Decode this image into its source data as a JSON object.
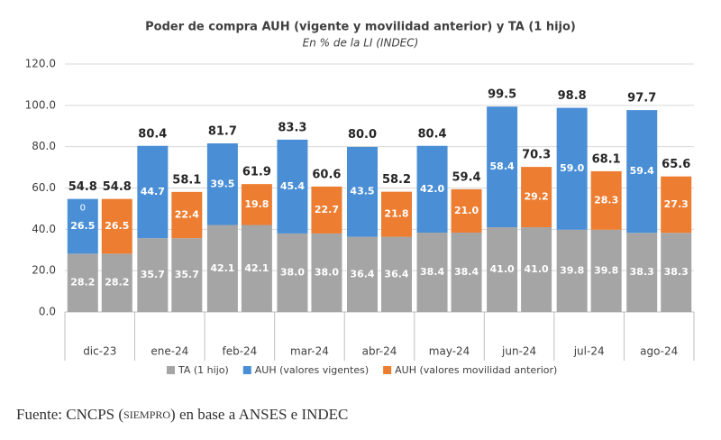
{
  "chart_data": {
    "type": "grouped-stacked-bar",
    "title": "Poder de compra AUH (vigente y movilidad anterior) y TA (1 hijo)",
    "subtitle": "En % de la LI (INDEC)",
    "categories": [
      "dic-23",
      "ene-24",
      "feb-24",
      "mar-24",
      "abr-24",
      "may-24",
      "jun-24",
      "jul-24",
      "ago-24"
    ],
    "series": [
      {
        "name": "TA (1 hijo)",
        "color": "#a5a5a5",
        "values": [
          [
            28.2,
            28.2
          ],
          [
            35.7,
            35.7
          ],
          [
            42.1,
            42.1
          ],
          [
            38.0,
            38.0
          ],
          [
            36.4,
            36.4
          ],
          [
            38.4,
            38.4
          ],
          [
            41.0,
            41.0
          ],
          [
            39.8,
            39.8
          ],
          [
            38.3,
            38.3
          ]
        ],
        "value_labels": [
          [
            "28.2",
            "28.2"
          ],
          [
            "35.7",
            "35.7"
          ],
          [
            "42.1",
            "42.1"
          ],
          [
            "38.0",
            "38.0"
          ],
          [
            "36.4",
            "36.4"
          ],
          [
            "38.4",
            "38.4"
          ],
          [
            "41.0",
            "41.0"
          ],
          [
            "39.8",
            "39.8"
          ],
          [
            "38.3",
            "38.3"
          ]
        ]
      },
      {
        "name": "AUH (valores vigentes)",
        "color": "#4a8fd6",
        "bar": 0,
        "values": [
          26.5,
          44.7,
          39.5,
          45.4,
          43.5,
          42.0,
          58.4,
          59.0,
          59.4
        ],
        "value_labels": [
          "26.5",
          "44.7",
          "39.5",
          "45.4",
          "43.5",
          "42.0",
          "58.4",
          "59.0",
          "59.4"
        ]
      },
      {
        "name": "AUH (valores movilidad anterior)",
        "color": "#ed7d31",
        "bar": 1,
        "values": [
          26.5,
          22.4,
          19.8,
          22.7,
          21.8,
          21.0,
          29.2,
          28.3,
          27.3
        ],
        "value_labels": [
          "26.5",
          "22.4",
          "19.8",
          "22.7",
          "21.8",
          "21.0",
          "29.2",
          "28.3",
          "27.3"
        ]
      }
    ],
    "totals": {
      "values": [
        [
          54.8,
          54.8
        ],
        [
          80.4,
          58.1
        ],
        [
          81.7,
          61.9
        ],
        [
          83.3,
          60.6
        ],
        [
          80.0,
          58.2
        ],
        [
          80.4,
          59.4
        ],
        [
          99.5,
          70.3
        ],
        [
          98.8,
          68.1
        ],
        [
          97.7,
          65.6
        ]
      ],
      "value_labels": [
        [
          "54.8",
          "54.8"
        ],
        [
          "80.4",
          "58.1"
        ],
        [
          "81.7",
          "61.9"
        ],
        [
          "83.3",
          "60.6"
        ],
        [
          "80.0",
          "58.2"
        ],
        [
          "80.4",
          "59.4"
        ],
        [
          "99.5",
          "70.3"
        ],
        [
          "98.8",
          "68.1"
        ],
        [
          "97.7",
          "65.6"
        ]
      ]
    },
    "annotation": "0",
    "ylim": [
      0,
      120
    ],
    "yticks": [
      {
        "value": 0,
        "label": "0.0"
      },
      {
        "value": 20,
        "label": "20.0"
      },
      {
        "value": 40,
        "label": "40.0"
      },
      {
        "value": 60,
        "label": "60.0"
      },
      {
        "value": 80,
        "label": "80.0"
      },
      {
        "value": 100,
        "label": "100.0"
      },
      {
        "value": 120,
        "label": "120.0"
      }
    ],
    "grid": true,
    "legend": "bottom"
  },
  "source": {
    "prefix": "Fuente: CNCPS (",
    "emphasis": "SIEMPRO",
    "suffix": ") en base a ANSES e INDEC"
  }
}
